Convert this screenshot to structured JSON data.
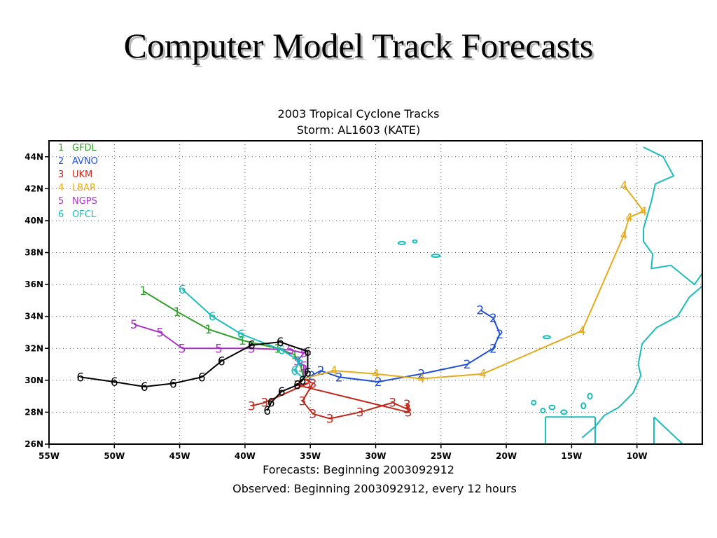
{
  "slide": {
    "title": "Computer Model Track Forecasts"
  },
  "chart_data": {
    "type": "scatter",
    "title": "2003 Tropical Cyclone Tracks",
    "subtitle": "Storm: AL1603 (KATE)",
    "footer1": "Forecasts: Beginning 2003092912",
    "footer2": "Observed: Beginning 2003092912, every 12 hours",
    "xlim": [
      -55,
      -5
    ],
    "ylim": [
      26,
      45
    ],
    "x_ticks": [
      {
        "v": -55,
        "label": "55W"
      },
      {
        "v": -50,
        "label": "50W"
      },
      {
        "v": -45,
        "label": "45W"
      },
      {
        "v": -40,
        "label": "40W"
      },
      {
        "v": -35,
        "label": "35W"
      },
      {
        "v": -30,
        "label": "30W"
      },
      {
        "v": -25,
        "label": "25W"
      },
      {
        "v": -20,
        "label": "20W"
      },
      {
        "v": -15,
        "label": "15W"
      },
      {
        "v": -10,
        "label": "10W"
      }
    ],
    "y_ticks": [
      {
        "v": 26,
        "label": "26N"
      },
      {
        "v": 28,
        "label": "28N"
      },
      {
        "v": 30,
        "label": "30N"
      },
      {
        "v": 32,
        "label": "32N"
      },
      {
        "v": 34,
        "label": "34N"
      },
      {
        "v": 36,
        "label": "36N"
      },
      {
        "v": 38,
        "label": "38N"
      },
      {
        "v": 40,
        "label": "40N"
      },
      {
        "v": 42,
        "label": "42N"
      },
      {
        "v": 44,
        "label": "44N"
      }
    ],
    "grid": true,
    "legend_position": "top-left",
    "series": [
      {
        "name": "GFDL",
        "marker": "1",
        "color": "#33a02c",
        "points": [
          [
            -35.5,
            30.1
          ],
          [
            -35.7,
            30.8
          ],
          [
            -36.2,
            31.6
          ],
          [
            -37.5,
            32.0
          ],
          [
            -40.2,
            32.5
          ],
          [
            -42.8,
            33.2
          ],
          [
            -45.2,
            34.3
          ],
          [
            -47.8,
            35.6
          ]
        ]
      },
      {
        "name": "AVNO",
        "marker": "2",
        "color": "#1f4fd6",
        "points": [
          [
            -35.5,
            30.1
          ],
          [
            -34.9,
            30.3
          ],
          [
            -34.2,
            30.6
          ],
          [
            -32.8,
            30.2
          ],
          [
            -29.8,
            29.9
          ],
          [
            -26.5,
            30.4
          ],
          [
            -23.0,
            31.0
          ],
          [
            -21.0,
            32.0
          ],
          [
            -20.5,
            32.9
          ],
          [
            -21.0,
            33.9
          ],
          [
            -22.0,
            34.4
          ]
        ]
      },
      {
        "name": "UKM",
        "marker": "3",
        "color": "#c0281c",
        "points": [
          [
            -35.5,
            30.1
          ],
          [
            -34.8,
            29.8
          ],
          [
            -35.6,
            28.7
          ],
          [
            -34.8,
            27.9
          ],
          [
            -33.5,
            27.6
          ],
          [
            -31.2,
            28.0
          ],
          [
            -28.7,
            28.6
          ],
          [
            -27.6,
            28.2
          ],
          [
            -27.6,
            28.5
          ],
          [
            -27.5,
            28.0
          ],
          [
            -36.0,
            29.7
          ],
          [
            -35.2,
            29.8
          ],
          [
            -38.5,
            28.6
          ],
          [
            -39.5,
            28.4
          ]
        ]
      },
      {
        "name": "LBAR",
        "marker": "4",
        "color": "#e5ab1a",
        "points": [
          [
            -35.5,
            30.1
          ],
          [
            -33.2,
            30.6
          ],
          [
            -30.0,
            30.4
          ],
          [
            -26.5,
            30.1
          ],
          [
            -21.8,
            30.4
          ],
          [
            -14.2,
            33.1
          ],
          [
            -11.0,
            39.1
          ],
          [
            -10.6,
            40.2
          ],
          [
            -9.5,
            40.6
          ],
          [
            -11.0,
            42.2
          ]
        ]
      },
      {
        "name": "NGPS",
        "marker": "5",
        "color": "#a933c6",
        "points": [
          [
            -35.5,
            30.1
          ],
          [
            -35.5,
            30.9
          ],
          [
            -36.0,
            31.2
          ],
          [
            -35.5,
            31.7
          ],
          [
            -36.5,
            31.9
          ],
          [
            -39.5,
            32.0
          ],
          [
            -42.0,
            32.0
          ],
          [
            -44.8,
            32.0
          ],
          [
            -46.5,
            33.0
          ],
          [
            -48.5,
            33.5
          ]
        ]
      },
      {
        "name": "OFCL",
        "marker": "6",
        "color": "#1abcbc",
        "points": [
          [
            -35.5,
            30.1
          ],
          [
            -36.2,
            30.6
          ],
          [
            -35.8,
            31.2
          ],
          [
            -37.2,
            31.9
          ],
          [
            -40.3,
            32.9
          ],
          [
            -42.5,
            34.0
          ],
          [
            -44.8,
            35.7
          ]
        ]
      },
      {
        "name": "",
        "marker": "6",
        "color": "#000000",
        "points": [
          [
            -52.6,
            30.2
          ],
          [
            -50.0,
            29.9
          ],
          [
            -47.7,
            29.6
          ],
          [
            -45.5,
            29.8
          ],
          [
            -43.3,
            30.2
          ],
          [
            -41.8,
            31.2
          ],
          [
            -39.5,
            32.2
          ],
          [
            -37.3,
            32.4
          ],
          [
            -35.2,
            31.8
          ],
          [
            -35.2,
            30.5
          ],
          [
            -35.6,
            30.0
          ],
          [
            -36.0,
            29.7
          ],
          [
            -37.2,
            29.3
          ],
          [
            -38.0,
            28.6
          ],
          [
            -38.3,
            28.1
          ]
        ]
      }
    ],
    "coastline_color": "#1abcbc"
  }
}
